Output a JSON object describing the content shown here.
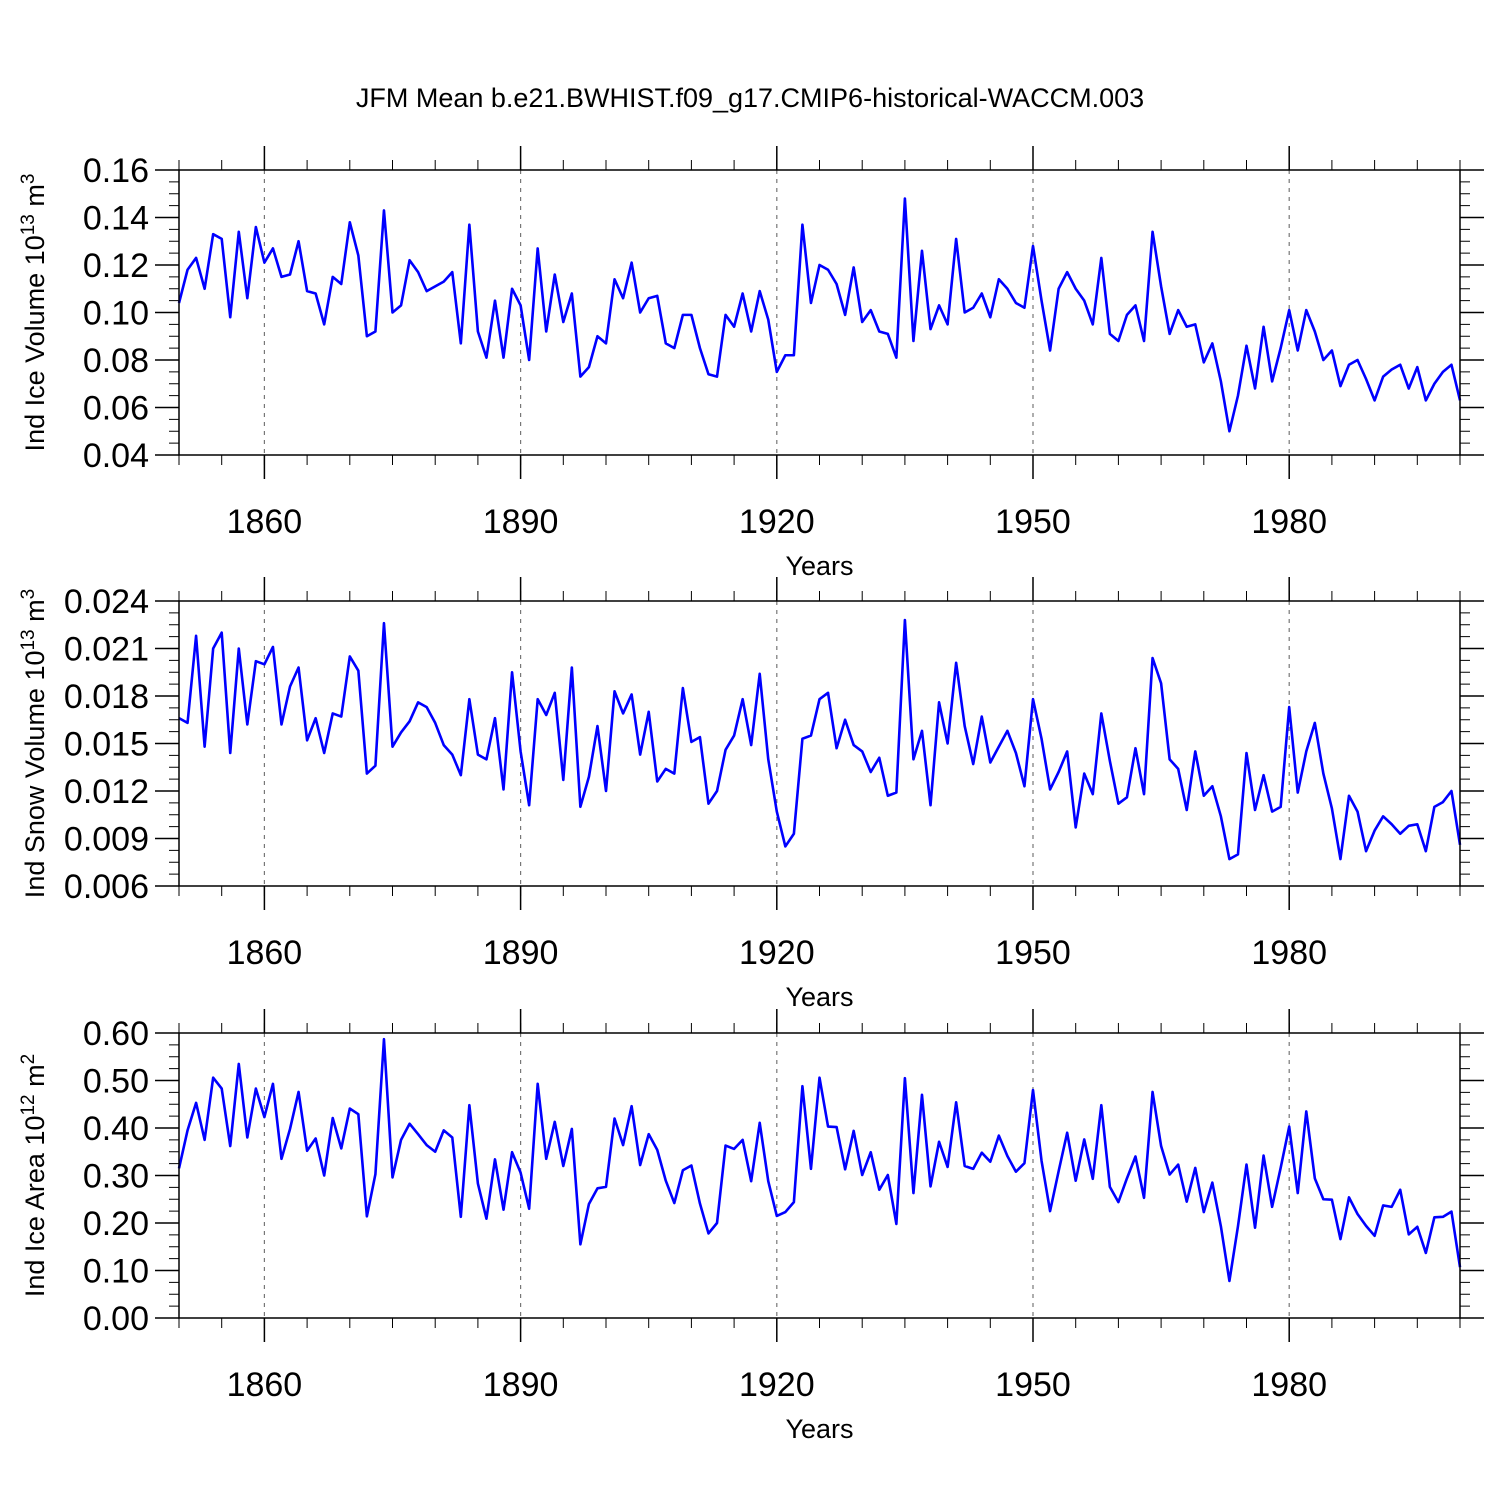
{
  "figure_title": "JFM Mean b.e21.BWHIST.f09_g17.CMIP6-historical-WACCM.003",
  "chart_data": [
    {
      "type": "line",
      "title": "JFM Mean b.e21.BWHIST.f09_g17.CMIP6-historical-WACCM.003",
      "ylabel": "Ind Ice Volume 10",
      "ylabel_exp": "13",
      "ylabel_unit": " m",
      "ylabel_unit_exp": "3",
      "xlabel": "Years",
      "xlim": [
        1850,
        2000
      ],
      "ylim": [
        0.04,
        0.16
      ],
      "yticks": [
        0.04,
        0.06,
        0.08,
        0.1,
        0.12,
        0.14,
        0.16
      ],
      "ytick_labels": [
        "0.04",
        "0.06",
        "0.08",
        "0.10",
        "0.12",
        "0.14",
        "0.16"
      ],
      "yminor_step": 0.005,
      "xticks": [
        1860,
        1890,
        1920,
        1950,
        1980
      ],
      "xtick_labels": [
        "1860",
        "1890",
        "1920",
        "1950",
        "1980"
      ],
      "x_start": 1850,
      "line_color": "#0000ff",
      "grid": "dashed vertical lines at major x ticks",
      "series": [
        {
          "name": "Ind Ice Volume",
          "values": [
            0.104,
            0.118,
            0.123,
            0.11,
            0.133,
            0.131,
            0.098,
            0.134,
            0.106,
            0.136,
            0.121,
            0.127,
            0.115,
            0.116,
            0.13,
            0.109,
            0.108,
            0.095,
            0.115,
            0.112,
            0.138,
            0.124,
            0.09,
            0.092,
            0.143,
            0.1,
            0.103,
            0.122,
            0.117,
            0.109,
            0.111,
            0.113,
            0.117,
            0.087,
            0.137,
            0.092,
            0.081,
            0.105,
            0.081,
            0.11,
            0.103,
            0.08,
            0.127,
            0.092,
            0.116,
            0.096,
            0.108,
            0.073,
            0.077,
            0.09,
            0.087,
            0.114,
            0.106,
            0.121,
            0.1,
            0.106,
            0.107,
            0.087,
            0.085,
            0.099,
            0.099,
            0.085,
            0.074,
            0.073,
            0.099,
            0.094,
            0.108,
            0.092,
            0.109,
            0.097,
            0.075,
            0.082,
            0.082,
            0.137,
            0.104,
            0.12,
            0.118,
            0.112,
            0.099,
            0.119,
            0.096,
            0.101,
            0.092,
            0.091,
            0.081,
            0.148,
            0.088,
            0.126,
            0.093,
            0.103,
            0.095,
            0.131,
            0.1,
            0.102,
            0.108,
            0.098,
            0.114,
            0.11,
            0.104,
            0.102,
            0.128,
            0.105,
            0.084,
            0.11,
            0.117,
            0.11,
            0.105,
            0.095,
            0.123,
            0.091,
            0.088,
            0.099,
            0.103,
            0.088,
            0.134,
            0.111,
            0.091,
            0.101,
            0.094,
            0.095,
            0.079,
            0.087,
            0.071,
            0.05,
            0.065,
            0.086,
            0.068,
            0.094,
            0.071,
            0.085,
            0.101,
            0.084,
            0.101,
            0.092,
            0.08,
            0.084,
            0.069,
            0.078,
            0.08,
            0.072,
            0.063,
            0.073,
            0.076,
            0.078,
            0.068,
            0.077,
            0.063,
            0.07,
            0.075,
            0.078,
            0.063
          ]
        }
      ]
    },
    {
      "type": "line",
      "ylabel": "Ind Snow Volume 10",
      "ylabel_exp": "13",
      "ylabel_unit": " m",
      "ylabel_unit_exp": "3",
      "xlabel": "Years",
      "xlim": [
        1850,
        2000
      ],
      "ylim": [
        0.006,
        0.024
      ],
      "yticks": [
        0.006,
        0.009,
        0.012,
        0.015,
        0.018,
        0.021,
        0.024
      ],
      "ytick_labels": [
        "0.006",
        "0.009",
        "0.012",
        "0.015",
        "0.018",
        "0.021",
        "0.024"
      ],
      "yminor_step": 0.00075,
      "xticks": [
        1860,
        1890,
        1920,
        1950,
        1980
      ],
      "xtick_labels": [
        "1860",
        "1890",
        "1920",
        "1950",
        "1980"
      ],
      "x_start": 1850,
      "line_color": "#0000ff",
      "grid": "dashed vertical lines at major x ticks",
      "series": [
        {
          "name": "Ind Snow Volume",
          "values": [
            0.0166,
            0.0163,
            0.0218,
            0.0148,
            0.021,
            0.022,
            0.0144,
            0.021,
            0.0162,
            0.0202,
            0.02,
            0.0211,
            0.0162,
            0.0186,
            0.0198,
            0.0152,
            0.0166,
            0.0144,
            0.0169,
            0.0167,
            0.0205,
            0.0196,
            0.0131,
            0.0136,
            0.0226,
            0.0148,
            0.0157,
            0.0164,
            0.0176,
            0.0173,
            0.0163,
            0.0149,
            0.0143,
            0.013,
            0.0178,
            0.0143,
            0.014,
            0.0166,
            0.0121,
            0.0195,
            0.0145,
            0.0111,
            0.0178,
            0.0168,
            0.0182,
            0.0127,
            0.0198,
            0.011,
            0.0129,
            0.0161,
            0.012,
            0.0183,
            0.0169,
            0.0181,
            0.0143,
            0.017,
            0.0126,
            0.0134,
            0.0131,
            0.0185,
            0.0151,
            0.0154,
            0.0112,
            0.012,
            0.0146,
            0.0155,
            0.0178,
            0.0149,
            0.0194,
            0.014,
            0.0107,
            0.0085,
            0.0093,
            0.0153,
            0.0155,
            0.0178,
            0.0182,
            0.0147,
            0.0165,
            0.0149,
            0.0145,
            0.0132,
            0.0141,
            0.0117,
            0.0119,
            0.0228,
            0.014,
            0.0158,
            0.0111,
            0.0176,
            0.015,
            0.0201,
            0.0161,
            0.0137,
            0.0167,
            0.0138,
            0.0148,
            0.0158,
            0.0144,
            0.0123,
            0.0178,
            0.0153,
            0.0121,
            0.0132,
            0.0145,
            0.0097,
            0.0131,
            0.0118,
            0.0169,
            0.0139,
            0.0112,
            0.0116,
            0.0147,
            0.0118,
            0.0204,
            0.0188,
            0.014,
            0.0134,
            0.0108,
            0.0145,
            0.0117,
            0.0123,
            0.0104,
            0.0077,
            0.008,
            0.0144,
            0.0108,
            0.013,
            0.0107,
            0.011,
            0.0173,
            0.0119,
            0.0145,
            0.0163,
            0.0131,
            0.0109,
            0.0077,
            0.0117,
            0.0107,
            0.0082,
            0.0095,
            0.0104,
            0.0099,
            0.0093,
            0.0098,
            0.0099,
            0.0082,
            0.011,
            0.0113,
            0.012,
            0.0086
          ]
        }
      ]
    },
    {
      "type": "line",
      "ylabel": "Ind Ice Area 10",
      "ylabel_exp": "12",
      "ylabel_unit": " m",
      "ylabel_unit_exp": "2",
      "xlabel": "Years",
      "xlim": [
        1850,
        2000
      ],
      "ylim": [
        0.0,
        0.6
      ],
      "yticks": [
        0.0,
        0.1,
        0.2,
        0.3,
        0.4,
        0.5,
        0.6
      ],
      "ytick_labels": [
        "0.00",
        "0.10",
        "0.20",
        "0.30",
        "0.40",
        "0.50",
        "0.60"
      ],
      "yminor_step": 0.025,
      "xticks": [
        1860,
        1890,
        1920,
        1950,
        1980
      ],
      "xtick_labels": [
        "1860",
        "1890",
        "1920",
        "1950",
        "1980"
      ],
      "x_start": 1850,
      "line_color": "#0000ff",
      "grid": "dashed vertical lines at major x ticks",
      "series": [
        {
          "name": "Ind Ice Area",
          "values": [
            0.315,
            0.395,
            0.453,
            0.375,
            0.506,
            0.483,
            0.362,
            0.535,
            0.38,
            0.483,
            0.423,
            0.493,
            0.335,
            0.398,
            0.476,
            0.352,
            0.378,
            0.3,
            0.421,
            0.357,
            0.441,
            0.429,
            0.214,
            0.303,
            0.587,
            0.296,
            0.375,
            0.409,
            0.387,
            0.364,
            0.35,
            0.395,
            0.38,
            0.213,
            0.448,
            0.283,
            0.209,
            0.334,
            0.228,
            0.349,
            0.306,
            0.23,
            0.493,
            0.335,
            0.413,
            0.32,
            0.398,
            0.155,
            0.24,
            0.273,
            0.276,
            0.42,
            0.364,
            0.446,
            0.322,
            0.387,
            0.354,
            0.289,
            0.242,
            0.311,
            0.321,
            0.241,
            0.178,
            0.2,
            0.363,
            0.356,
            0.375,
            0.288,
            0.411,
            0.288,
            0.215,
            0.223,
            0.244,
            0.488,
            0.314,
            0.506,
            0.403,
            0.402,
            0.313,
            0.394,
            0.301,
            0.349,
            0.27,
            0.301,
            0.198,
            0.505,
            0.263,
            0.47,
            0.277,
            0.371,
            0.318,
            0.454,
            0.32,
            0.314,
            0.348,
            0.329,
            0.384,
            0.341,
            0.308,
            0.326,
            0.48,
            0.331,
            0.225,
            0.309,
            0.39,
            0.289,
            0.376,
            0.293,
            0.448,
            0.276,
            0.244,
            0.294,
            0.34,
            0.253,
            0.476,
            0.362,
            0.302,
            0.323,
            0.245,
            0.316,
            0.223,
            0.285,
            0.193,
            0.078,
            0.193,
            0.323,
            0.19,
            0.342,
            0.234,
            0.316,
            0.403,
            0.263,
            0.435,
            0.294,
            0.25,
            0.249,
            0.166,
            0.254,
            0.219,
            0.194,
            0.173,
            0.237,
            0.234,
            0.27,
            0.176,
            0.192,
            0.137,
            0.212,
            0.213,
            0.224,
            0.107
          ]
        }
      ]
    }
  ]
}
